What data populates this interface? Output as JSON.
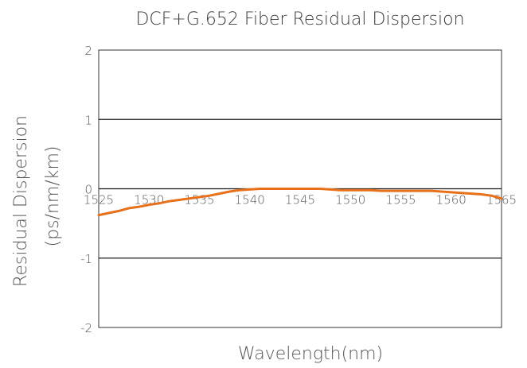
{
  "chart_data": {
    "type": "line",
    "title": "DCF+G.652 Fiber Residual Dispersion",
    "xlabel": "Wavelength(nm)",
    "ylabel_line1": "Residual Dispersion",
    "ylabel_line2": "(ps/nm/km)",
    "xlim": [
      1525,
      1565
    ],
    "ylim": [
      -2,
      2
    ],
    "xticks": [
      1525,
      1530,
      1535,
      1540,
      1545,
      1550,
      1555,
      1560,
      1565
    ],
    "yticks": [
      2,
      1,
      0,
      -1,
      -2
    ],
    "grid": "horizontal",
    "series": [
      {
        "color": "#E8701A",
        "x": [
          1525,
          1526,
          1527,
          1528,
          1529,
          1530,
          1531,
          1532,
          1533,
          1534,
          1535,
          1536,
          1537,
          1538,
          1539,
          1540,
          1541,
          1542,
          1543,
          1544,
          1545,
          1546,
          1547,
          1548,
          1549,
          1550,
          1551,
          1552,
          1553,
          1554,
          1555,
          1556,
          1557,
          1558,
          1559,
          1560,
          1561,
          1562,
          1563,
          1564,
          1565
        ],
        "y": [
          -0.38,
          -0.35,
          -0.32,
          -0.28,
          -0.26,
          -0.23,
          -0.21,
          -0.18,
          -0.16,
          -0.14,
          -0.12,
          -0.1,
          -0.07,
          -0.04,
          -0.02,
          -0.01,
          0.0,
          0.0,
          0.0,
          0.0,
          0.0,
          0.0,
          0.0,
          -0.01,
          -0.02,
          -0.02,
          -0.02,
          -0.02,
          -0.03,
          -0.03,
          -0.03,
          -0.03,
          -0.03,
          -0.03,
          -0.04,
          -0.05,
          -0.06,
          -0.07,
          -0.08,
          -0.1,
          -0.14
        ]
      }
    ]
  }
}
